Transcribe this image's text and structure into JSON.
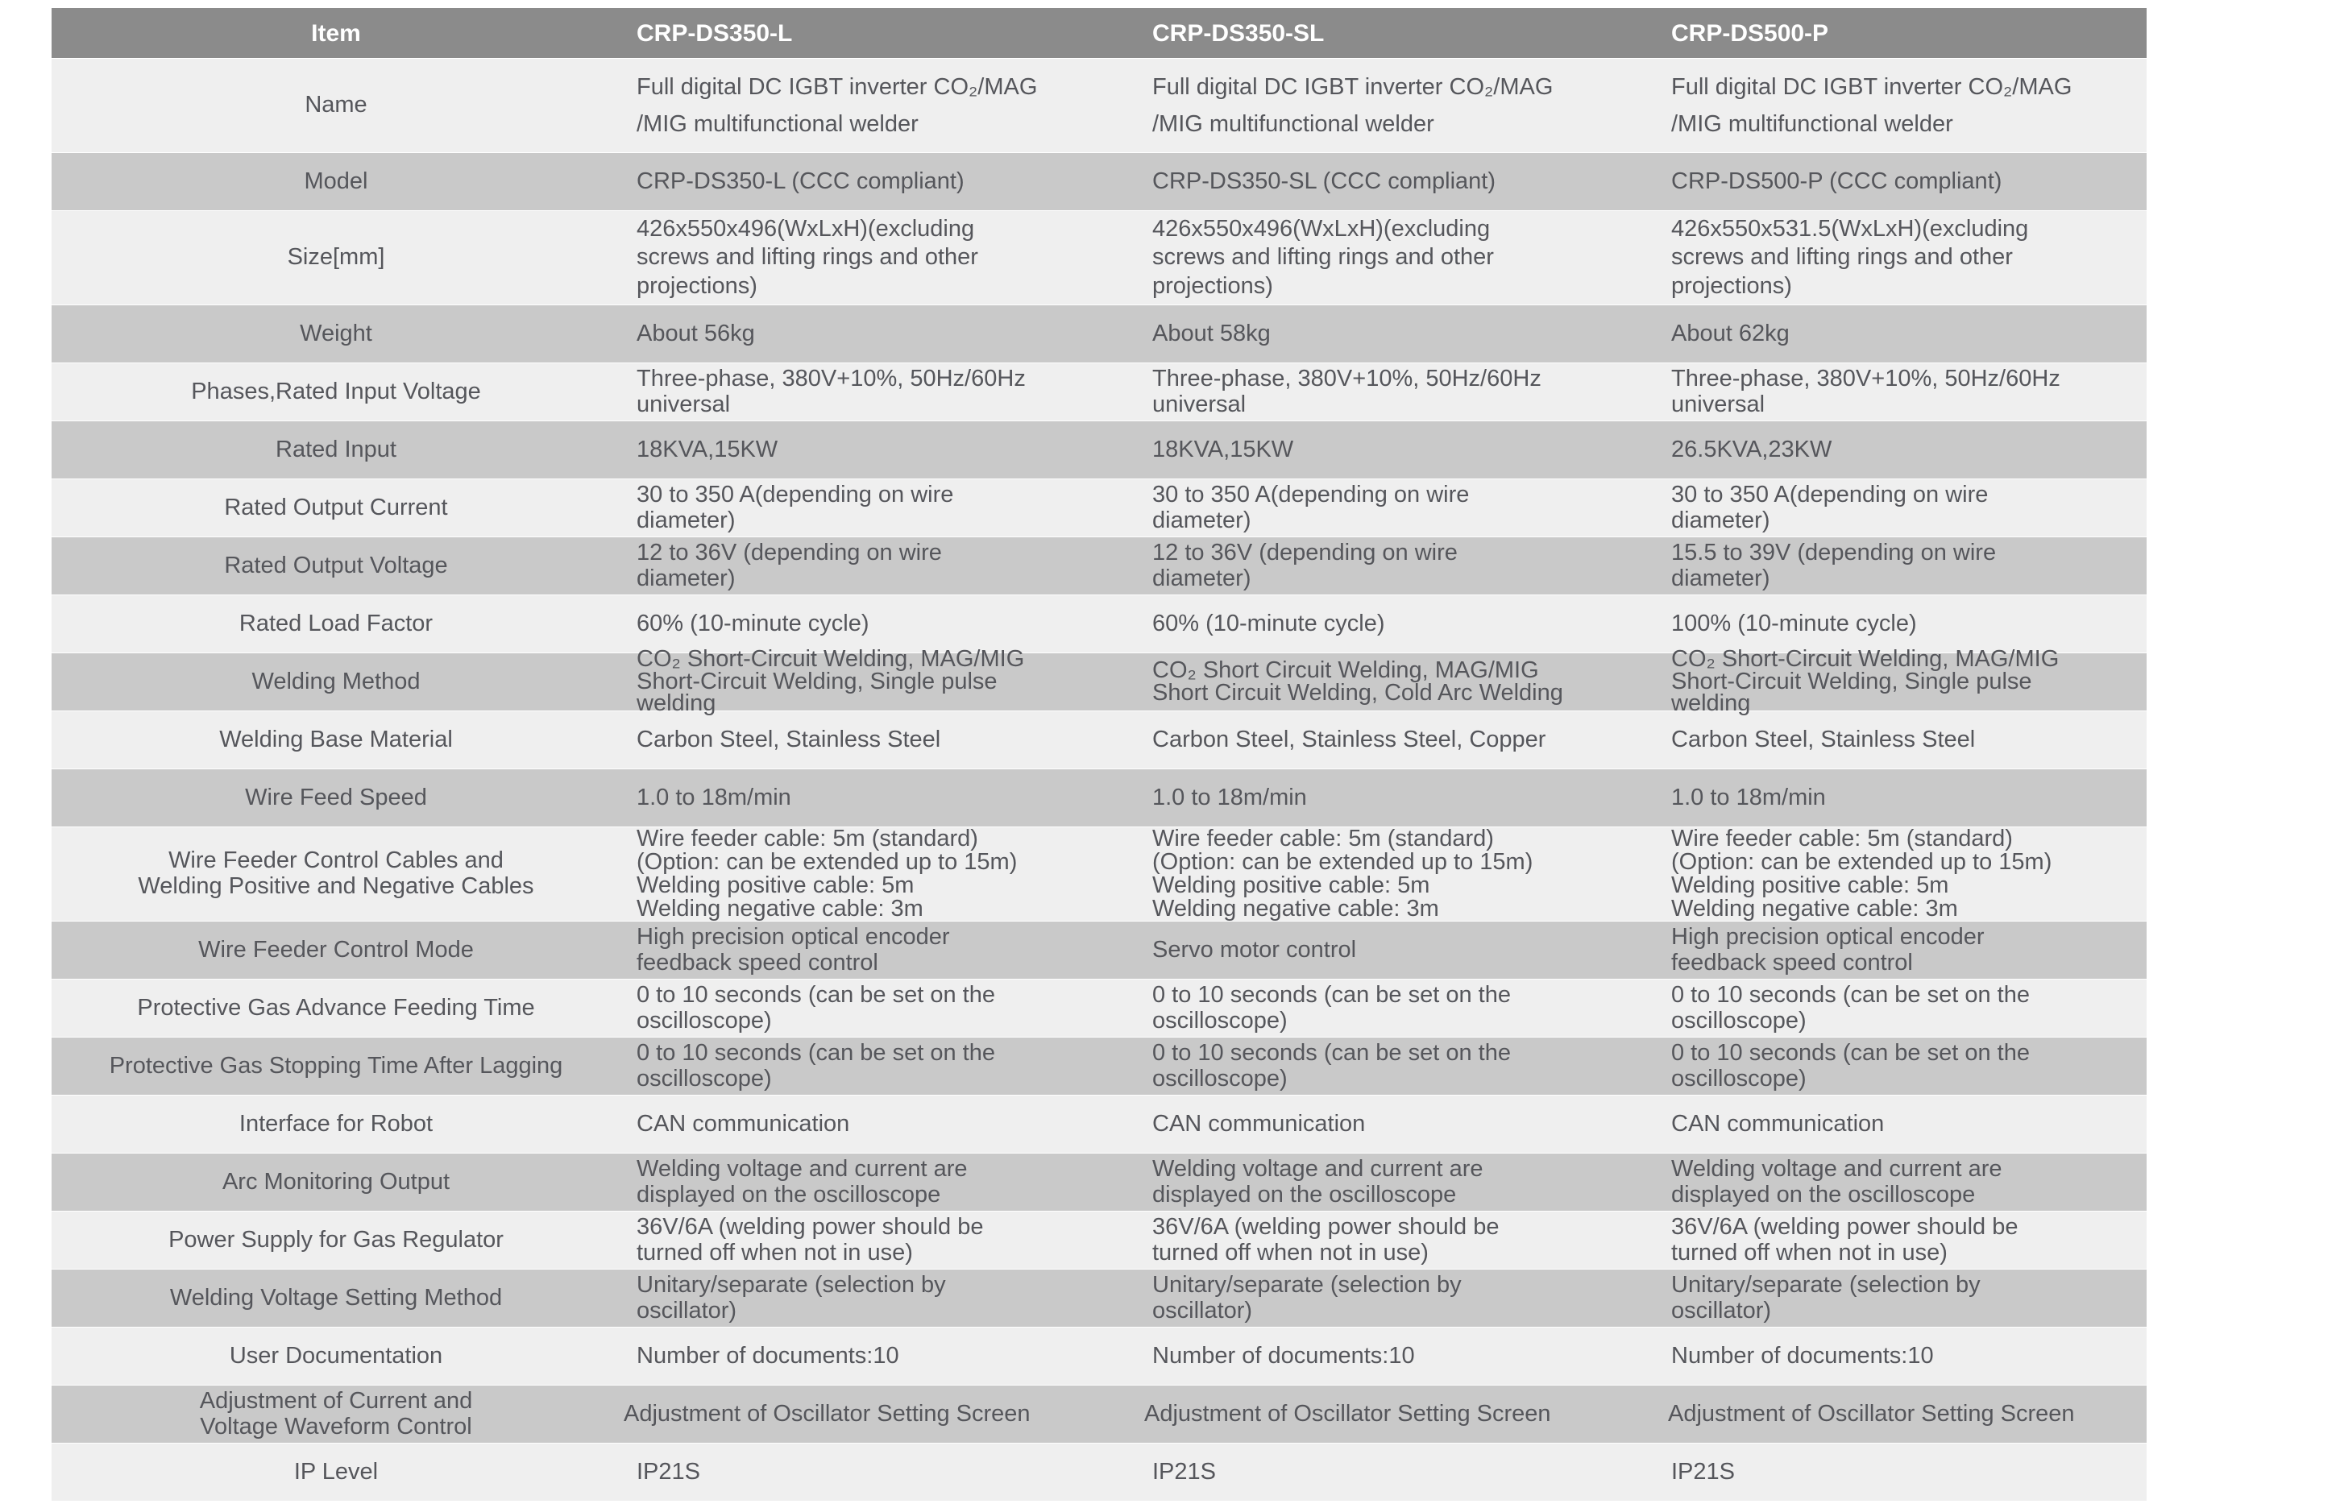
{
  "colors": {
    "header_bg": "#8b8b8b",
    "header_text": "#ffffff",
    "row_gray": "#c9c9c9",
    "row_light": "#efefef",
    "body_text": "#55565b",
    "page_bg": "#ffffff"
  },
  "table": {
    "header": {
      "item": "Item",
      "models": [
        "CRP-DS350-L",
        "CRP-DS350-SL",
        "CRP-DS500-P"
      ]
    },
    "rows": [
      {
        "label": "Name",
        "cells": [
          "Full digital DC IGBT inverter CO₂/MAG\n/MIG multifunctional welder",
          "Full digital DC IGBT inverter CO₂/MAG\n/MIG multifunctional welder",
          "Full digital DC IGBT inverter CO₂/MAG\n/MIG multifunctional welder"
        ]
      },
      {
        "label": "Model",
        "cells": [
          "CRP-DS350-L (CCC compliant)",
          "CRP-DS350-SL (CCC compliant)",
          "CRP-DS500-P (CCC compliant)"
        ]
      },
      {
        "label": "Size[mm]",
        "cells": [
          "426x550x496(WxLxH)(excluding\nscrews and lifting rings and other\nprojections)",
          "426x550x496(WxLxH)(excluding\nscrews and lifting rings and other\nprojections)",
          "426x550x531.5(WxLxH)(excluding\nscrews and lifting rings and other\nprojections)"
        ]
      },
      {
        "label": "Weight",
        "cells": [
          "About 56kg",
          "About 58kg",
          "About 62kg"
        ]
      },
      {
        "label": "Phases,Rated Input Voltage",
        "cells": [
          "Three-phase, 380V+10%, 50Hz/60Hz\nuniversal",
          "Three-phase, 380V+10%, 50Hz/60Hz\nuniversal",
          "Three-phase, 380V+10%, 50Hz/60Hz\nuniversal"
        ]
      },
      {
        "label": "Rated Input",
        "cells": [
          "18KVA,15KW",
          "18KVA,15KW",
          "26.5KVA,23KW"
        ]
      },
      {
        "label": "Rated Output Current",
        "cells": [
          "30 to 350 A(depending on wire\ndiameter)",
          "30 to 350 A(depending on wire\ndiameter)",
          "30 to 350 A(depending on wire\ndiameter)"
        ]
      },
      {
        "label": "Rated Output Voltage",
        "cells": [
          "12 to 36V (depending on wire\ndiameter)",
          "12 to 36V (depending on wire\ndiameter)",
          "15.5 to 39V (depending on wire\ndiameter)"
        ]
      },
      {
        "label": "Rated Load Factor",
        "cells": [
          "60% (10-minute cycle)",
          "60% (10-minute cycle)",
          "100% (10-minute cycle)"
        ]
      },
      {
        "label": "Welding Method",
        "cells": [
          "CO₂ Short-Circuit Welding, MAG/MIG\nShort-Circuit Welding, Single pulse\nwelding",
          "CO₂ Short Circuit Welding, MAG/MIG\nShort Circuit Welding, Cold Arc Welding",
          "CO₂ Short-Circuit Welding, MAG/MIG\nShort-Circuit Welding, Single pulse\nwelding"
        ]
      },
      {
        "label": "Welding Base Material",
        "cells": [
          "Carbon Steel, Stainless Steel",
          "Carbon Steel, Stainless Steel, Copper",
          "Carbon Steel, Stainless Steel"
        ]
      },
      {
        "label": "Wire Feed Speed",
        "cells": [
          "1.0 to 18m/min",
          "1.0 to 18m/min",
          "1.0 to 18m/min"
        ]
      },
      {
        "label": "Wire Feeder Control Cables and\nWelding Positive and Negative Cables",
        "cells": [
          "Wire feeder cable: 5m (standard)\n(Option: can be extended up to 15m)\nWelding positive cable: 5m\nWelding negative cable: 3m",
          "Wire feeder cable: 5m (standard)\n(Option: can be extended up to 15m)\nWelding positive cable: 5m\nWelding negative cable: 3m",
          "Wire feeder cable: 5m (standard)\n(Option: can be extended up to 15m)\nWelding positive cable: 5m\nWelding negative cable: 3m"
        ]
      },
      {
        "label": "Wire Feeder Control Mode",
        "cells": [
          "High precision optical encoder\nfeedback speed control",
          "Servo motor control",
          "High precision optical encoder\nfeedback speed control"
        ]
      },
      {
        "label": "Protective Gas Advance Feeding Time",
        "cells": [
          "0 to 10 seconds (can be set on the\noscilloscope)",
          "0 to 10 seconds (can be set on the\noscilloscope)",
          "0 to 10 seconds (can be set on the\noscilloscope)"
        ]
      },
      {
        "label": "Protective Gas Stopping Time After Lagging",
        "cells": [
          "0 to 10 seconds (can be set on the\noscilloscope)",
          "0 to 10 seconds (can be set on the\noscilloscope)",
          "0 to 10 seconds (can be set on the\noscilloscope)"
        ]
      },
      {
        "label": "Interface for Robot",
        "cells": [
          "CAN communication",
          "CAN communication",
          "CAN communication"
        ]
      },
      {
        "label": "Arc Monitoring Output",
        "cells": [
          "Welding voltage and current are\ndisplayed on the oscilloscope",
          "Welding voltage and current are\ndisplayed on the oscilloscope",
          "Welding voltage and current are\ndisplayed on the oscilloscope"
        ]
      },
      {
        "label": "Power Supply for Gas Regulator",
        "cells": [
          "36V/6A (welding power should be\nturned off when not in use)",
          "36V/6A (welding power should be\nturned off when not in use)",
          "36V/6A (welding power should be\nturned off when not in use)"
        ]
      },
      {
        "label": "Welding Voltage Setting Method",
        "cells": [
          "Unitary/separate (selection by\noscillator)",
          "Unitary/separate (selection by\noscillator)",
          "Unitary/separate (selection by\noscillator)"
        ]
      },
      {
        "label": "User Documentation",
        "cells": [
          "Number of documents:10",
          "Number of documents:10",
          "Number of documents:10"
        ]
      },
      {
        "label": "Adjustment of Current and\nVoltage Waveform Control",
        "cells": [
          "Adjustment of Oscillator Setting Screen",
          "Adjustment of Oscillator Setting Screen",
          "Adjustment of Oscillator Setting Screen"
        ]
      },
      {
        "label": "IP Level",
        "cells": [
          "IP21S",
          "IP21S",
          "IP21S"
        ]
      }
    ]
  }
}
